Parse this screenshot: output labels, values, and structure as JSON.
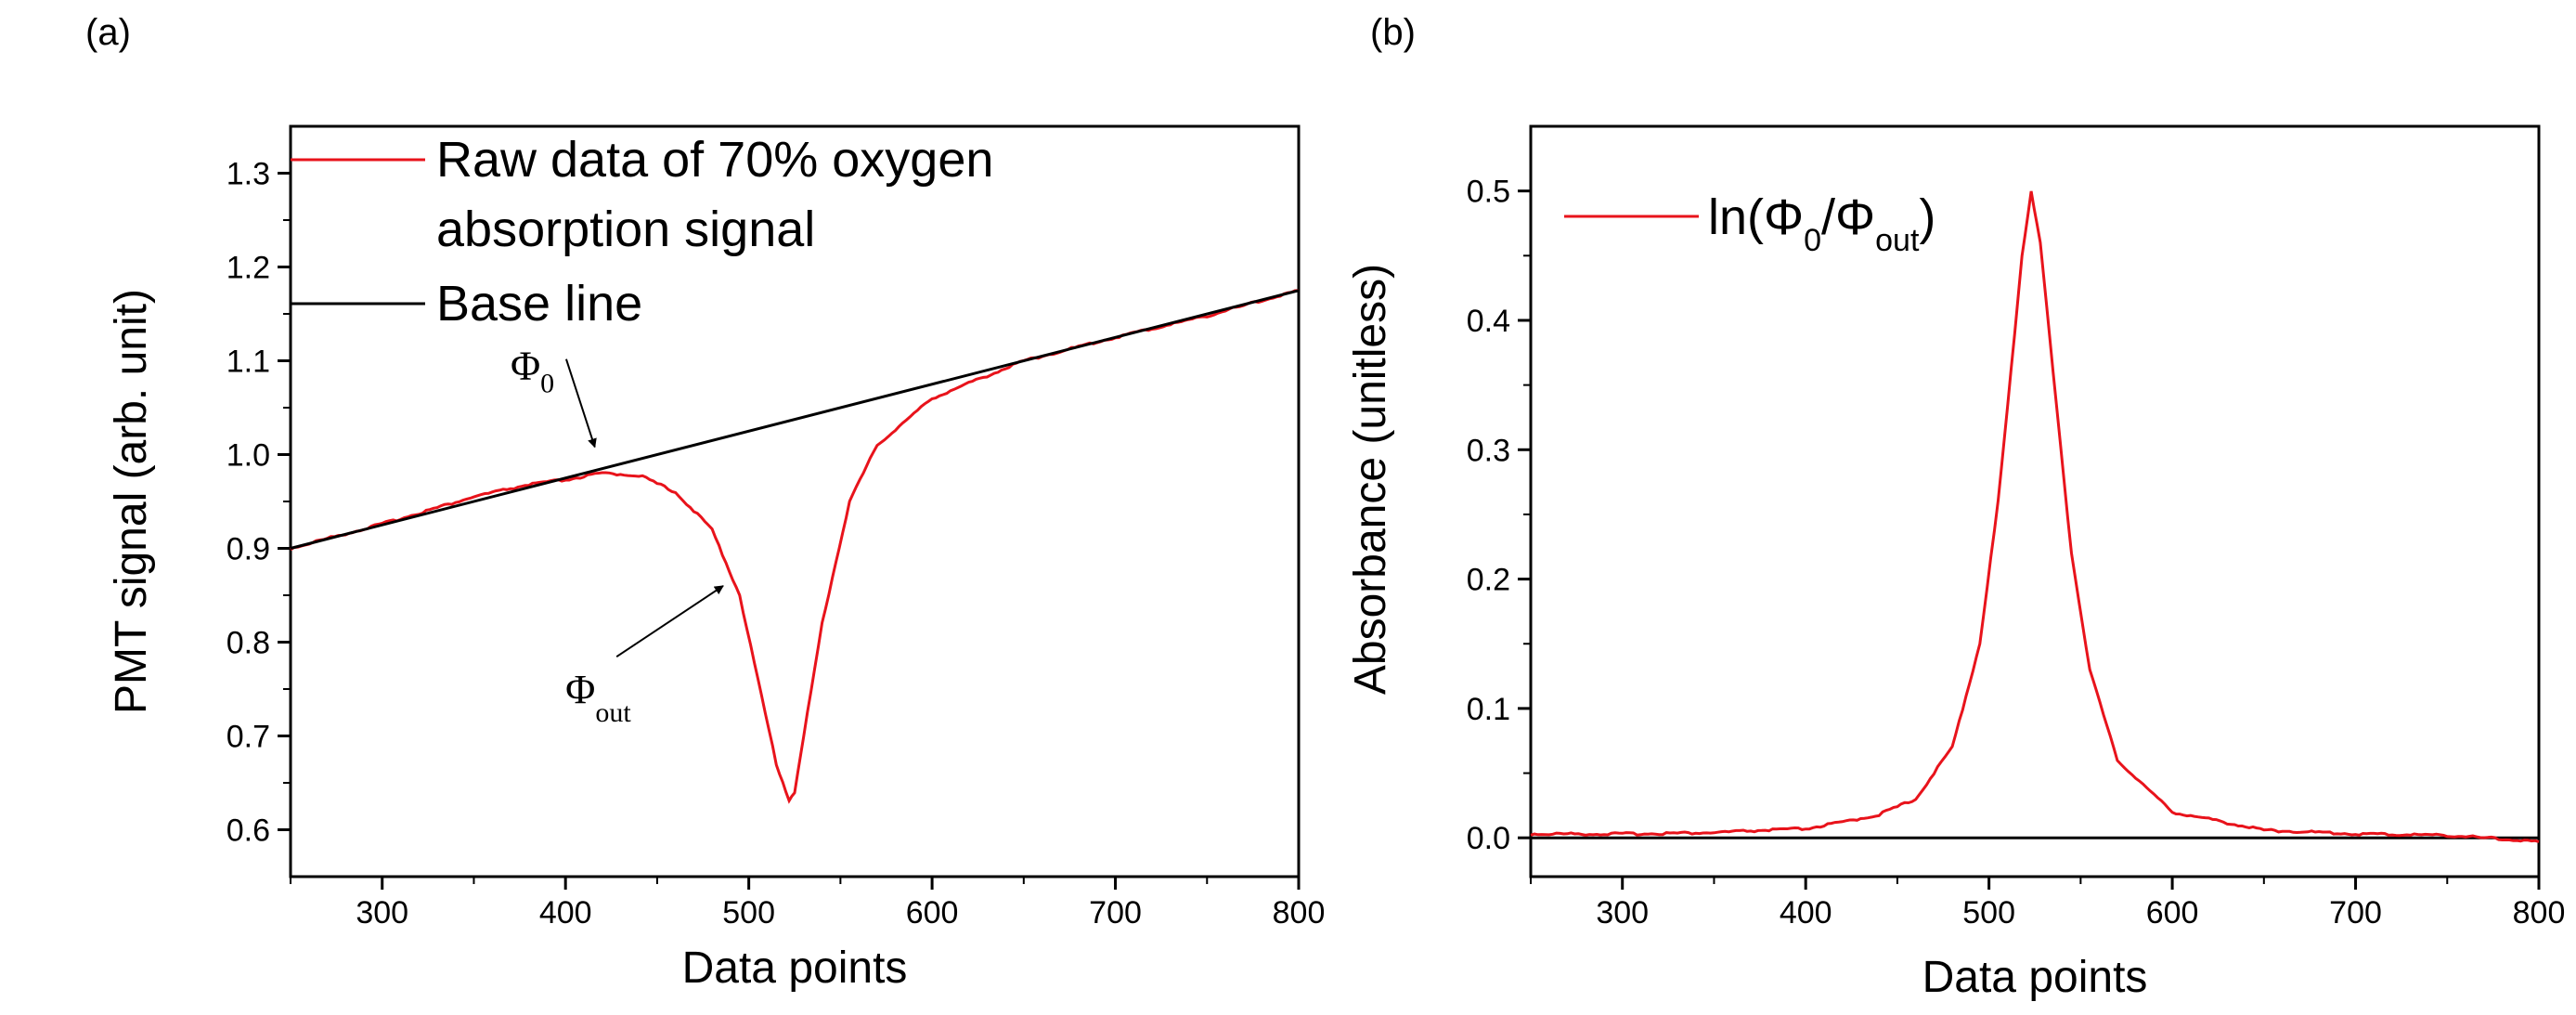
{
  "chart_data": [
    {
      "panel_label": "(a)",
      "type": "line",
      "title": "",
      "xlabel": "Data points",
      "ylabel": "PMT signal (arb. unit)",
      "xlim": [
        250,
        800
      ],
      "ylim": [
        0.55,
        1.35
      ],
      "xticks": [
        300,
        400,
        500,
        600,
        700,
        800
      ],
      "xtick_labels": [
        "300",
        "400",
        "500",
        "600",
        "700",
        "800"
      ],
      "yticks": [
        0.6,
        0.7,
        0.8,
        0.9,
        1.0,
        1.1,
        1.2,
        1.3
      ],
      "ytick_labels": [
        "0.6",
        "0.7",
        "0.8",
        "0.9",
        "1.0",
        "1.1",
        "1.2",
        "1.3"
      ],
      "legend": {
        "placement": "top-left",
        "entries": [
          {
            "label_line1": "Raw data of 70% oxygen",
            "label_line2": "absorption signal",
            "color": "#e8131b"
          },
          {
            "label": "Base line",
            "color": "#000000"
          }
        ]
      },
      "series": [
        {
          "name": "Raw data of 70% oxygen absorption signal",
          "color": "#e8131b",
          "x": [
            250,
            300,
            350,
            380,
            400,
            420,
            440,
            460,
            480,
            495,
            505,
            515,
            522,
            525,
            530,
            540,
            555,
            570,
            600,
            650,
            700,
            750,
            800
          ],
          "values": [
            0.9,
            0.926,
            0.955,
            0.968,
            0.973,
            0.98,
            0.978,
            0.96,
            0.92,
            0.85,
            0.76,
            0.67,
            0.632,
            0.64,
            0.7,
            0.82,
            0.95,
            1.01,
            1.06,
            1.1,
            1.125,
            1.148,
            1.175
          ]
        },
        {
          "name": "Base line",
          "color": "#000000",
          "x": [
            250,
            800
          ],
          "values": [
            0.9,
            1.175
          ]
        }
      ],
      "annotations": [
        {
          "symbol": "Φ",
          "subscript": "0",
          "text_x": 370,
          "text_y": 1.08,
          "arrow_to_x": 416,
          "arrow_to_y": 1.008
        },
        {
          "symbol": "Φ",
          "subscript": "out",
          "text_x": 400,
          "text_y": 0.735,
          "arrow_to_x": 486,
          "arrow_to_y": 0.86
        }
      ]
    },
    {
      "panel_label": "(b)",
      "type": "line",
      "title": "",
      "xlabel": "Data points",
      "ylabel": "Absorbance (unitless)",
      "xlim": [
        250,
        800
      ],
      "ylim": [
        -0.03,
        0.55
      ],
      "xticks": [
        300,
        400,
        500,
        600,
        700,
        800
      ],
      "xtick_labels": [
        "300",
        "400",
        "500",
        "600",
        "700",
        "800"
      ],
      "yticks": [
        0.0,
        0.1,
        0.2,
        0.3,
        0.4,
        0.5
      ],
      "ytick_labels": [
        "0.0",
        "0.1",
        "0.2",
        "0.3",
        "0.4",
        "0.5"
      ],
      "legend": {
        "placement": "top-left",
        "entries": [
          {
            "label_prefix": "ln(Φ",
            "sub1": "0",
            "label_mid": "/Φ",
            "sub2": "out",
            "label_suffix": ")",
            "color": "#e8131b"
          }
        ]
      },
      "series": [
        {
          "name": "ln(Φ0/Φout)",
          "color": "#e8131b",
          "x": [
            250,
            300,
            350,
            380,
            400,
            420,
            440,
            460,
            480,
            495,
            505,
            512,
            518,
            523,
            528,
            535,
            545,
            555,
            570,
            600,
            650,
            700,
            750,
            800
          ],
          "values": [
            0.003,
            0.003,
            0.004,
            0.006,
            0.007,
            0.012,
            0.018,
            0.03,
            0.07,
            0.15,
            0.26,
            0.36,
            0.45,
            0.5,
            0.46,
            0.36,
            0.22,
            0.13,
            0.06,
            0.02,
            0.006,
            0.003,
            0.002,
            -0.003
          ]
        },
        {
          "name": "zero line",
          "color": "#000000",
          "x": [
            250,
            800
          ],
          "values": [
            0.0,
            0.0
          ]
        }
      ]
    }
  ]
}
